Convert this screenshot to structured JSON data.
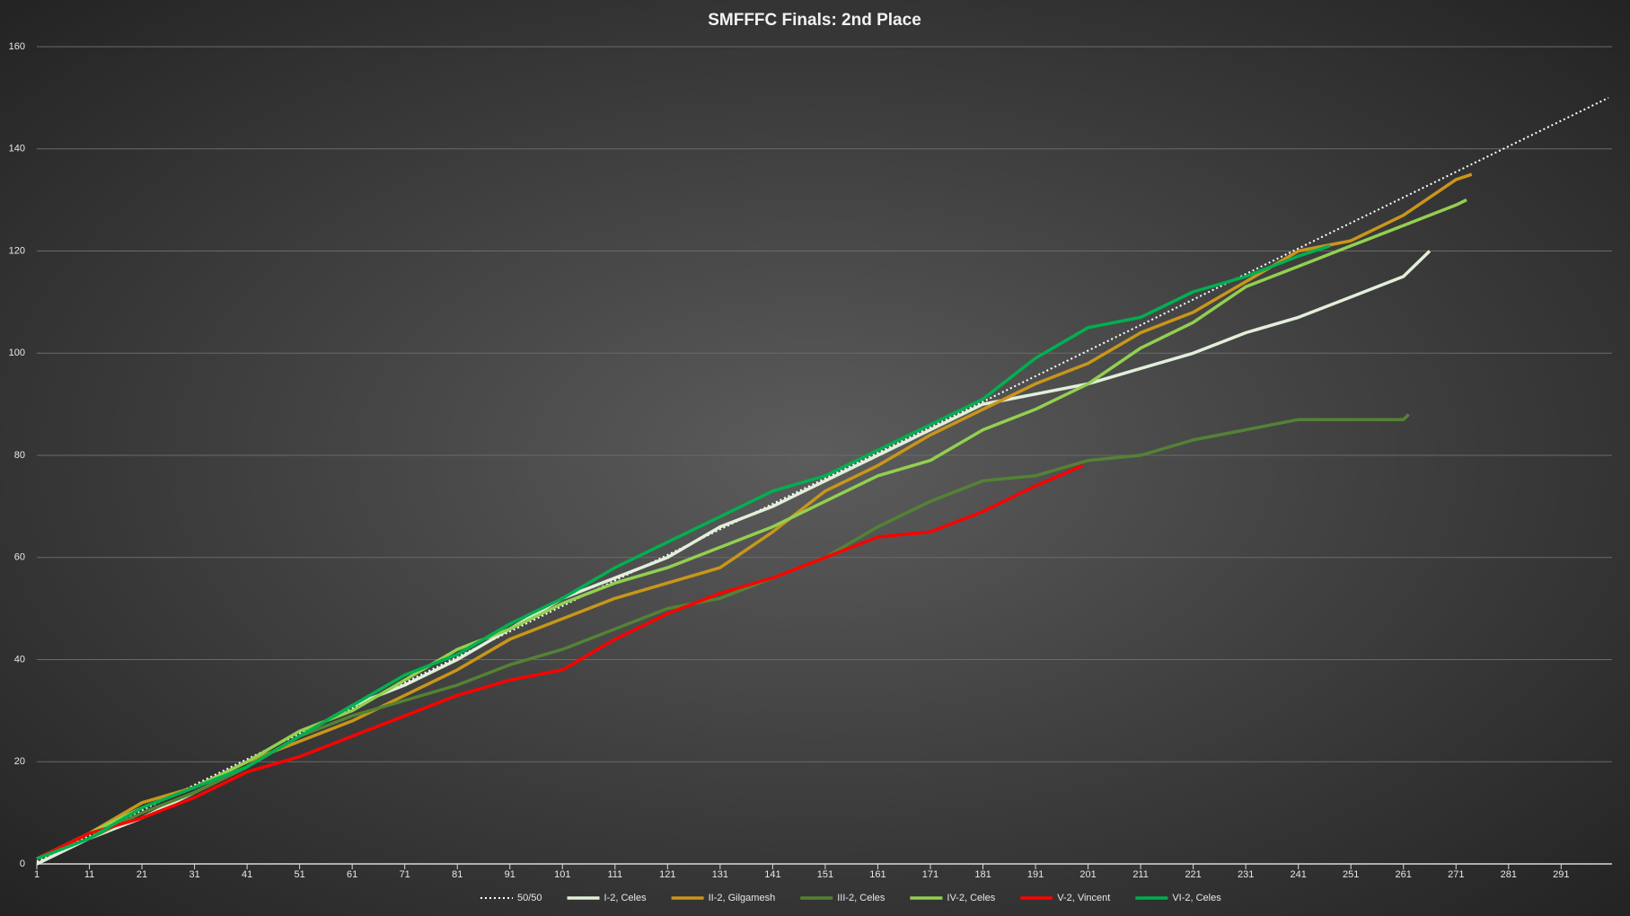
{
  "chart_data": {
    "type": "line",
    "title": "SMFFFC Finals: 2nd Place",
    "xlim": [
      1,
      300
    ],
    "xticks": [
      1,
      11,
      21,
      31,
      41,
      51,
      61,
      71,
      81,
      91,
      101,
      111,
      121,
      131,
      141,
      151,
      161,
      171,
      181,
      191,
      201,
      211,
      221,
      231,
      241,
      251,
      261,
      271,
      281,
      291
    ],
    "ylim": [
      0,
      160
    ],
    "yticks": [
      0,
      20,
      40,
      60,
      80,
      100,
      120,
      140,
      160
    ],
    "grid": true,
    "legend": "bottom",
    "series": [
      {
        "name": "50/50",
        "color": "#ffffff",
        "dashed": true,
        "x": [
          1,
          300
        ],
        "values": [
          0.5,
          150
        ]
      },
      {
        "name": "I-2, Celes",
        "color": "#e2efda",
        "x": [
          1,
          11,
          21,
          31,
          41,
          51,
          61,
          71,
          81,
          91,
          101,
          111,
          121,
          131,
          141,
          151,
          161,
          171,
          181,
          191,
          201,
          211,
          221,
          231,
          241,
          251,
          261,
          266
        ],
        "values": [
          0,
          5,
          9,
          14,
          19,
          25,
          31,
          35,
          40,
          46,
          52,
          56,
          60,
          66,
          70,
          75,
          80,
          85,
          90,
          92,
          94,
          97,
          100,
          104,
          107,
          111,
          115,
          120
        ]
      },
      {
        "name": "II-2, Gilgamesh",
        "color": "#c9961a",
        "x": [
          1,
          11,
          21,
          31,
          41,
          51,
          61,
          71,
          81,
          91,
          101,
          111,
          121,
          131,
          141,
          151,
          161,
          171,
          181,
          191,
          201,
          211,
          221,
          231,
          241,
          251,
          261,
          271,
          274
        ],
        "values": [
          1,
          6,
          12,
          15,
          20,
          24,
          28,
          33,
          38,
          44,
          48,
          52,
          55,
          58,
          65,
          73,
          78,
          84,
          89,
          94,
          98,
          104,
          108,
          114,
          120,
          122,
          127,
          134,
          135
        ]
      },
      {
        "name": "III-2, Celes",
        "color": "#548235",
        "x": [
          1,
          11,
          21,
          31,
          41,
          51,
          61,
          71,
          81,
          91,
          101,
          111,
          121,
          131,
          141,
          151,
          161,
          171,
          181,
          191,
          201,
          211,
          221,
          231,
          241,
          251,
          261,
          262
        ],
        "values": [
          1,
          5,
          10,
          14,
          19,
          25,
          29,
          32,
          35,
          39,
          42,
          46,
          50,
          52,
          56,
          60,
          66,
          71,
          75,
          76,
          79,
          80,
          83,
          85,
          87,
          87,
          87,
          88
        ]
      },
      {
        "name": "IV-2, Celes",
        "color": "#92d050",
        "x": [
          1,
          11,
          21,
          31,
          41,
          51,
          61,
          71,
          81,
          91,
          101,
          111,
          121,
          131,
          141,
          151,
          161,
          171,
          181,
          191,
          201,
          211,
          221,
          231,
          241,
          251,
          261,
          271,
          273
        ],
        "values": [
          1,
          6,
          11,
          15,
          20,
          26,
          30,
          36,
          42,
          46,
          51,
          55,
          58,
          62,
          66,
          71,
          76,
          79,
          85,
          89,
          94,
          101,
          106,
          113,
          117,
          121,
          125,
          129,
          130
        ]
      },
      {
        "name": "V-2, Vincent",
        "color": "#ff0000",
        "x": [
          1,
          11,
          21,
          31,
          41,
          51,
          61,
          71,
          81,
          91,
          101,
          111,
          121,
          131,
          141,
          151,
          161,
          171,
          181,
          191,
          200
        ],
        "values": [
          1,
          6,
          9,
          13,
          18,
          21,
          25,
          29,
          33,
          36,
          38,
          44,
          49,
          53,
          56,
          60,
          64,
          65,
          69,
          74,
          78
        ]
      },
      {
        "name": "VI-2, Celes",
        "color": "#00b050",
        "x": [
          1,
          11,
          21,
          31,
          41,
          51,
          61,
          71,
          81,
          91,
          101,
          111,
          121,
          131,
          141,
          151,
          161,
          171,
          181,
          191,
          201,
          211,
          221,
          231,
          241,
          247
        ],
        "values": [
          1,
          5,
          11,
          15,
          19,
          25,
          31,
          37,
          41,
          47,
          52,
          58,
          63,
          68,
          73,
          76,
          81,
          86,
          91,
          99,
          105,
          107,
          112,
          115,
          119,
          121
        ]
      }
    ]
  }
}
